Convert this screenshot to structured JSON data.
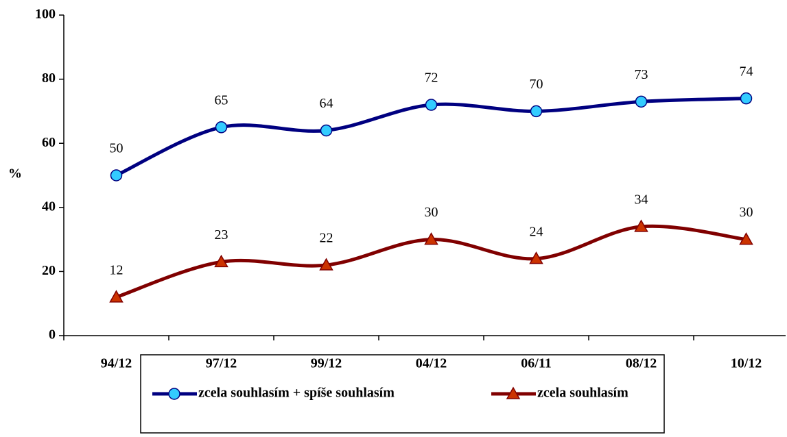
{
  "chart_data": {
    "type": "line",
    "ylabel": "%",
    "categories": [
      "94/12",
      "97/12",
      "99/12",
      "04/12",
      "06/11",
      "08/12",
      "10/12"
    ],
    "series": [
      {
        "name": "zcela souhlasím + spíše souhlasím",
        "color": "#000080",
        "marker": "circle",
        "marker_color": "#33ccff",
        "values": [
          50,
          65,
          64,
          72,
          70,
          73,
          74
        ]
      },
      {
        "name": "zcela souhlasím",
        "color": "#800000",
        "marker": "triangle",
        "marker_color": "#cc3300",
        "values": [
          12,
          23,
          22,
          30,
          24,
          34,
          30
        ]
      }
    ],
    "ylim": [
      0,
      100
    ],
    "yticks": [
      0,
      20,
      40,
      60,
      80,
      100
    ],
    "grid": false,
    "smooth": true,
    "legend": "bottom"
  }
}
